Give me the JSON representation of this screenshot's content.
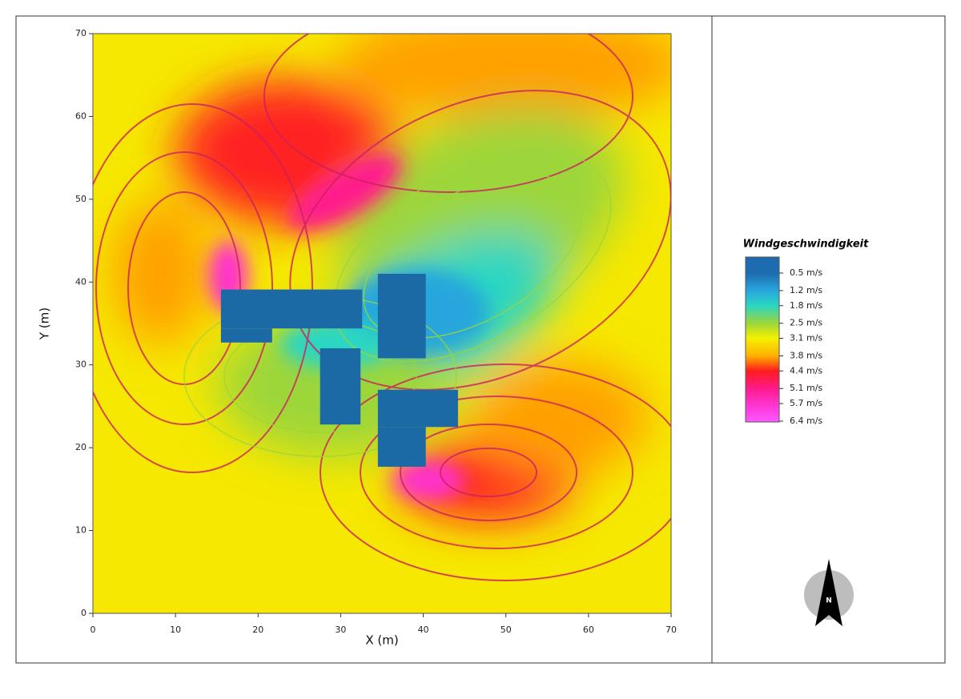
{
  "chart_data": {
    "type": "heatmap",
    "xlabel": "X (m)",
    "ylabel": "Y (m)",
    "xlim": [
      0,
      70
    ],
    "ylim": [
      0,
      70
    ],
    "xticks": [
      0,
      10,
      20,
      30,
      40,
      50,
      60,
      70
    ],
    "yticks": [
      0,
      10,
      20,
      30,
      40,
      50,
      60,
      70
    ],
    "buildings": [
      {
        "x": [
          15.5,
          32.6
        ],
        "y": [
          34.4,
          39.1
        ]
      },
      {
        "x": [
          15.5,
          21.7
        ],
        "y": [
          32.7,
          34.4
        ]
      },
      {
        "x": [
          34.5,
          40.3
        ],
        "y": [
          30.8,
          41.0
        ]
      },
      {
        "x": [
          27.5,
          32.4
        ],
        "y": [
          22.8,
          32.0
        ]
      },
      {
        "x": [
          34.5,
          44.2
        ],
        "y": [
          22.5,
          27.0
        ]
      },
      {
        "x": [
          34.5,
          40.3
        ],
        "y": [
          17.7,
          22.5
        ]
      }
    ],
    "building_color": "#1b6aa5",
    "legend": {
      "title": "Windgeschwindigkeit",
      "levels": [
        {
          "value": 0.5,
          "label": "0.5 m/s",
          "color": "#1e6cb0"
        },
        {
          "value": 1.2,
          "label": "1.2 m/s",
          "color": "#28a6dc"
        },
        {
          "value": 1.8,
          "label": "1.8 m/s",
          "color": "#2ad6c2"
        },
        {
          "value": 2.5,
          "label": "2.5 m/s",
          "color": "#9cd63a"
        },
        {
          "value": 3.1,
          "label": "3.1 m/s",
          "color": "#f4f000"
        },
        {
          "value": 3.8,
          "label": "3.8 m/s",
          "color": "#ffb000"
        },
        {
          "value": 4.4,
          "label": "4.4 m/s",
          "color": "#ff1c1c"
        },
        {
          "value": 5.1,
          "label": "5.1 m/s",
          "color": "#ff1a8c"
        },
        {
          "value": 5.7,
          "label": "5.7 m/s",
          "color": "#ff33cc"
        },
        {
          "value": 6.4,
          "label": "6.4 m/s",
          "color": "#ff55ff"
        }
      ]
    },
    "compass_label": "N"
  }
}
